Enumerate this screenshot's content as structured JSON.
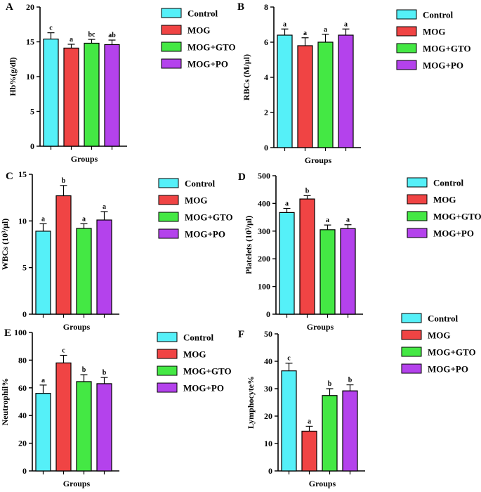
{
  "colors": {
    "Control": "#55f0f8",
    "MOG": "#f04444",
    "MOG+GTO": "#44e844",
    "MOG+PO": "#b442ec"
  },
  "chart_data": [
    {
      "type": "bar",
      "panel": "A",
      "ylabel": "Hb%(g/dl)",
      "xlabel": "Groups",
      "categories": [
        "Control",
        "MOG",
        "MOG+GTO",
        "MOG+PO"
      ],
      "values": [
        15.4,
        14.1,
        14.8,
        14.6
      ],
      "errors": [
        0.9,
        0.55,
        0.55,
        0.65
      ],
      "significance": [
        "c",
        "a",
        "bc",
        "ab"
      ],
      "ylim": [
        0,
        20
      ],
      "yticks": [
        0,
        5,
        10,
        15,
        20
      ],
      "legend": [
        "Control",
        "MOG",
        "MOG+GTO",
        "MOG+PO"
      ]
    },
    {
      "type": "bar",
      "panel": "B",
      "ylabel": "RBCs (M/µl)",
      "xlabel": "Groups",
      "categories": [
        "Control",
        "MOG",
        "MOG+GTO",
        "MOG+PO"
      ],
      "values": [
        6.4,
        5.8,
        6.0,
        6.4
      ],
      "errors": [
        0.35,
        0.45,
        0.45,
        0.35
      ],
      "significance": [
        "a",
        "a",
        "a",
        "a"
      ],
      "ylim": [
        0,
        8
      ],
      "yticks": [
        0,
        2,
        4,
        6,
        8
      ],
      "legend": [
        "Control",
        "MOG",
        "MOG+GTO",
        "MOG+PO"
      ]
    },
    {
      "type": "bar",
      "panel": "C",
      "ylabel": "WBCs (10³/µl)",
      "xlabel": "Groups",
      "categories": [
        "Control",
        "MOG",
        "MOG+GTO",
        "MOG+PO"
      ],
      "values": [
        8.9,
        12.7,
        9.2,
        10.1
      ],
      "errors": [
        0.8,
        1.1,
        0.5,
        0.9
      ],
      "significance": [
        "a",
        "b",
        "a",
        "a"
      ],
      "ylim": [
        0,
        15
      ],
      "yticks": [
        0,
        5,
        10,
        15
      ],
      "legend": [
        "Control",
        "MOG",
        "MOG+GTO",
        "MOG+PO"
      ]
    },
    {
      "type": "bar",
      "panel": "D",
      "ylabel": "Platelets (10³/µl)",
      "xlabel": "Groups",
      "categories": [
        "Control",
        "MOG",
        "MOG+GTO",
        "MOG+PO"
      ],
      "values": [
        367,
        416,
        305,
        309
      ],
      "errors": [
        15,
        12,
        17,
        14
      ],
      "significance": [
        "a",
        "b",
        "a",
        "a"
      ],
      "ylim": [
        0,
        500
      ],
      "yticks": [
        0,
        100,
        200,
        300,
        400,
        500
      ],
      "legend": [
        "Control",
        "MOG",
        "MOG+GTO",
        "MOG+PO"
      ]
    },
    {
      "type": "bar",
      "panel": "E",
      "ylabel": "Neutrophil%",
      "xlabel": "Groups",
      "categories": [
        "Control",
        "MOG",
        "MOG+GTO",
        "MOG+PO"
      ],
      "values": [
        56,
        78,
        64.5,
        63
      ],
      "errors": [
        6,
        5.5,
        5,
        4.5
      ],
      "significance": [
        "a",
        "c",
        "b",
        "b"
      ],
      "ylim": [
        0,
        100
      ],
      "yticks": [
        0,
        20,
        40,
        60,
        80,
        100
      ],
      "legend": [
        "Control",
        "MOG",
        "MOG+GTO",
        "MOG+PO"
      ]
    },
    {
      "type": "bar",
      "panel": "F",
      "ylabel": "Lymphocyte%",
      "xlabel": "Groups",
      "categories": [
        "Control",
        "MOG",
        "MOG+GTO",
        "MOG+PO"
      ],
      "values": [
        36.5,
        14.5,
        27.5,
        29.2
      ],
      "errors": [
        2.8,
        1.8,
        2.5,
        2.2
      ],
      "significance": [
        "c",
        "a",
        "b",
        "b"
      ],
      "ylim": [
        0,
        50
      ],
      "yticks": [
        0,
        10,
        20,
        30,
        40,
        50
      ],
      "legend": [
        "Control",
        "MOG",
        "MOG+GTO",
        "MOG+PO"
      ]
    }
  ]
}
